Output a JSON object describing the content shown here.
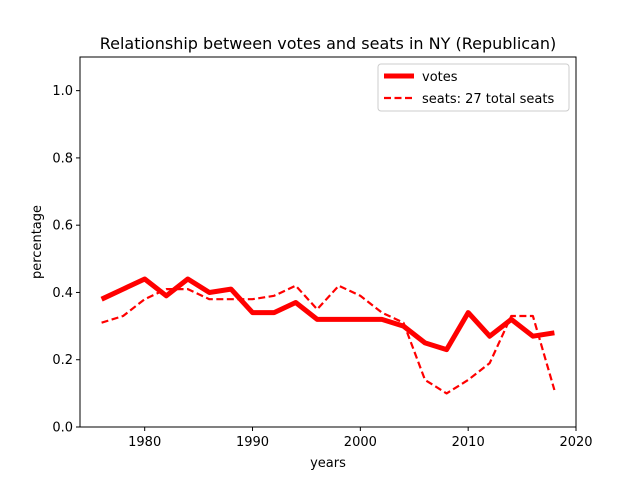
{
  "chart_data": {
    "type": "line",
    "title": "Relationship between votes and seats in NY (Republican)",
    "xlabel": "years",
    "ylabel": "percentage",
    "xlim": [
      1974,
      2020
    ],
    "ylim": [
      0.0,
      1.1
    ],
    "xticks": [
      1980,
      1990,
      2000,
      2010,
      2020
    ],
    "yticks": [
      0.0,
      0.2,
      0.4,
      0.6,
      0.8,
      1.0
    ],
    "grid": false,
    "legend_position": "top-right",
    "color": "#ff0000",
    "series": [
      {
        "name": "votes",
        "style": "solid-thick",
        "x": [
          1976,
          1978,
          1980,
          1982,
          1984,
          1986,
          1988,
          1990,
          1992,
          1994,
          1996,
          1998,
          2000,
          2002,
          2004,
          2006,
          2008,
          2010,
          2012,
          2014,
          2016,
          2018
        ],
        "y": [
          0.38,
          0.41,
          0.44,
          0.39,
          0.44,
          0.4,
          0.41,
          0.34,
          0.34,
          0.37,
          0.32,
          0.32,
          0.32,
          0.32,
          0.3,
          0.25,
          0.23,
          0.34,
          0.27,
          0.32,
          0.27,
          0.28
        ]
      },
      {
        "name": "seats: 27 total seats",
        "style": "dashed",
        "x": [
          1976,
          1978,
          1980,
          1982,
          1984,
          1986,
          1988,
          1990,
          1992,
          1994,
          1996,
          1998,
          2000,
          2002,
          2004,
          2006,
          2008,
          2010,
          2012,
          2014,
          2016,
          2018
        ],
        "y": [
          0.31,
          0.33,
          0.38,
          0.41,
          0.41,
          0.38,
          0.38,
          0.38,
          0.39,
          0.42,
          0.35,
          0.42,
          0.39,
          0.34,
          0.31,
          0.14,
          0.1,
          0.14,
          0.19,
          0.33,
          0.33,
          0.11
        ]
      }
    ]
  }
}
